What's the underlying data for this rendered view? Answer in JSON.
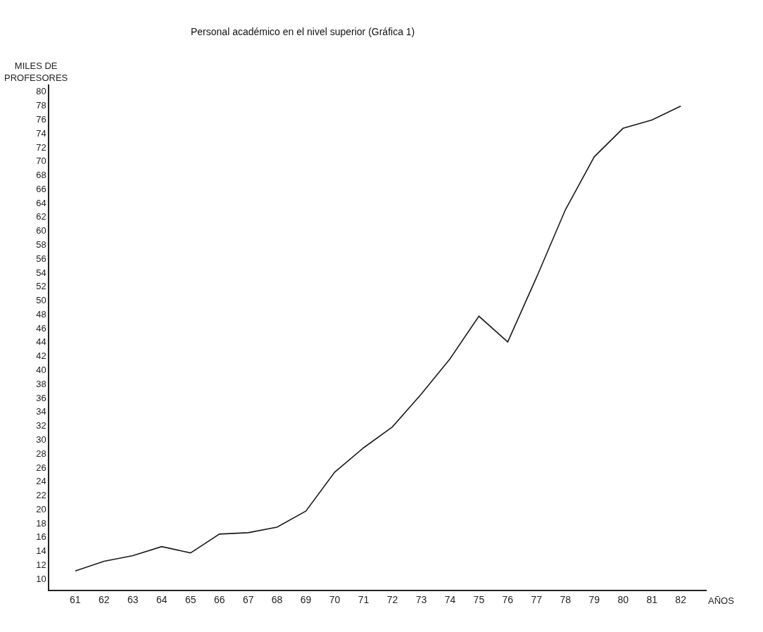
{
  "chart_data": {
    "type": "line",
    "title": "Personal académico en el nivel superior (Gráfica 1)",
    "ylabel": "MILES DE\nPROFESORES",
    "xlabel": "AÑOS",
    "categories": [
      "61",
      "62",
      "63",
      "64",
      "65",
      "66",
      "67",
      "68",
      "69",
      "70",
      "71",
      "72",
      "73",
      "74",
      "75",
      "76",
      "77",
      "78",
      "79",
      "80",
      "81",
      "82"
    ],
    "series": [
      {
        "color": "#1a1a1a",
        "values": [
          11.1,
          12.5,
          13.3,
          14.6,
          13.7,
          16.4,
          16.6,
          17.4,
          19.7,
          25.3,
          28.8,
          31.8,
          36.5,
          41.6,
          47.7,
          44,
          53.3,
          63,
          70.6,
          74.7,
          75.9,
          77.9
        ]
      }
    ],
    "ylim": [
      8.4,
      81
    ],
    "yticks": [
      10,
      12,
      14,
      16,
      18,
      20,
      22,
      24,
      26,
      28,
      30,
      32,
      34,
      36,
      38,
      40,
      42,
      44,
      46,
      48,
      50,
      52,
      54,
      56,
      58,
      60,
      62,
      64,
      66,
      68,
      70,
      72,
      74,
      76,
      78,
      80
    ],
    "marker": "none",
    "line_style": "solid"
  }
}
